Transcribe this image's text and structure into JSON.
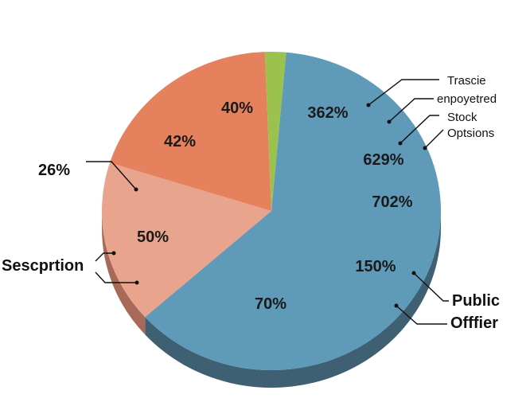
{
  "chart_data": {
    "type": "pie",
    "style": "3d",
    "slices": [
      {
        "key": "blue",
        "value": 62.0,
        "color": "#5f9ab8",
        "side_color": "#3f5f72"
      },
      {
        "key": "peach",
        "value": 16.5,
        "color": "#e8a48d",
        "side_color": "#a86a58"
      },
      {
        "key": "coral",
        "value": 19.5,
        "color": "#e6815e",
        "side_color": "#a6563d"
      },
      {
        "key": "green",
        "value": 2.0,
        "color": "#9cc24e",
        "side_color": "#6e8c33"
      }
    ],
    "slice_labels": [
      "40%",
      "362%",
      "42%",
      "629%",
      "702%",
      "50%",
      "150%",
      "70%"
    ],
    "callouts": {
      "left_top": "26%",
      "left_mid": "Sescprtion",
      "right_1": "Trascie",
      "right_2": "enpoyetred",
      "right_3": "Stock",
      "right_4": "Optsions",
      "right_bottom_1": "Public",
      "right_bottom_2": "Offfier"
    }
  }
}
